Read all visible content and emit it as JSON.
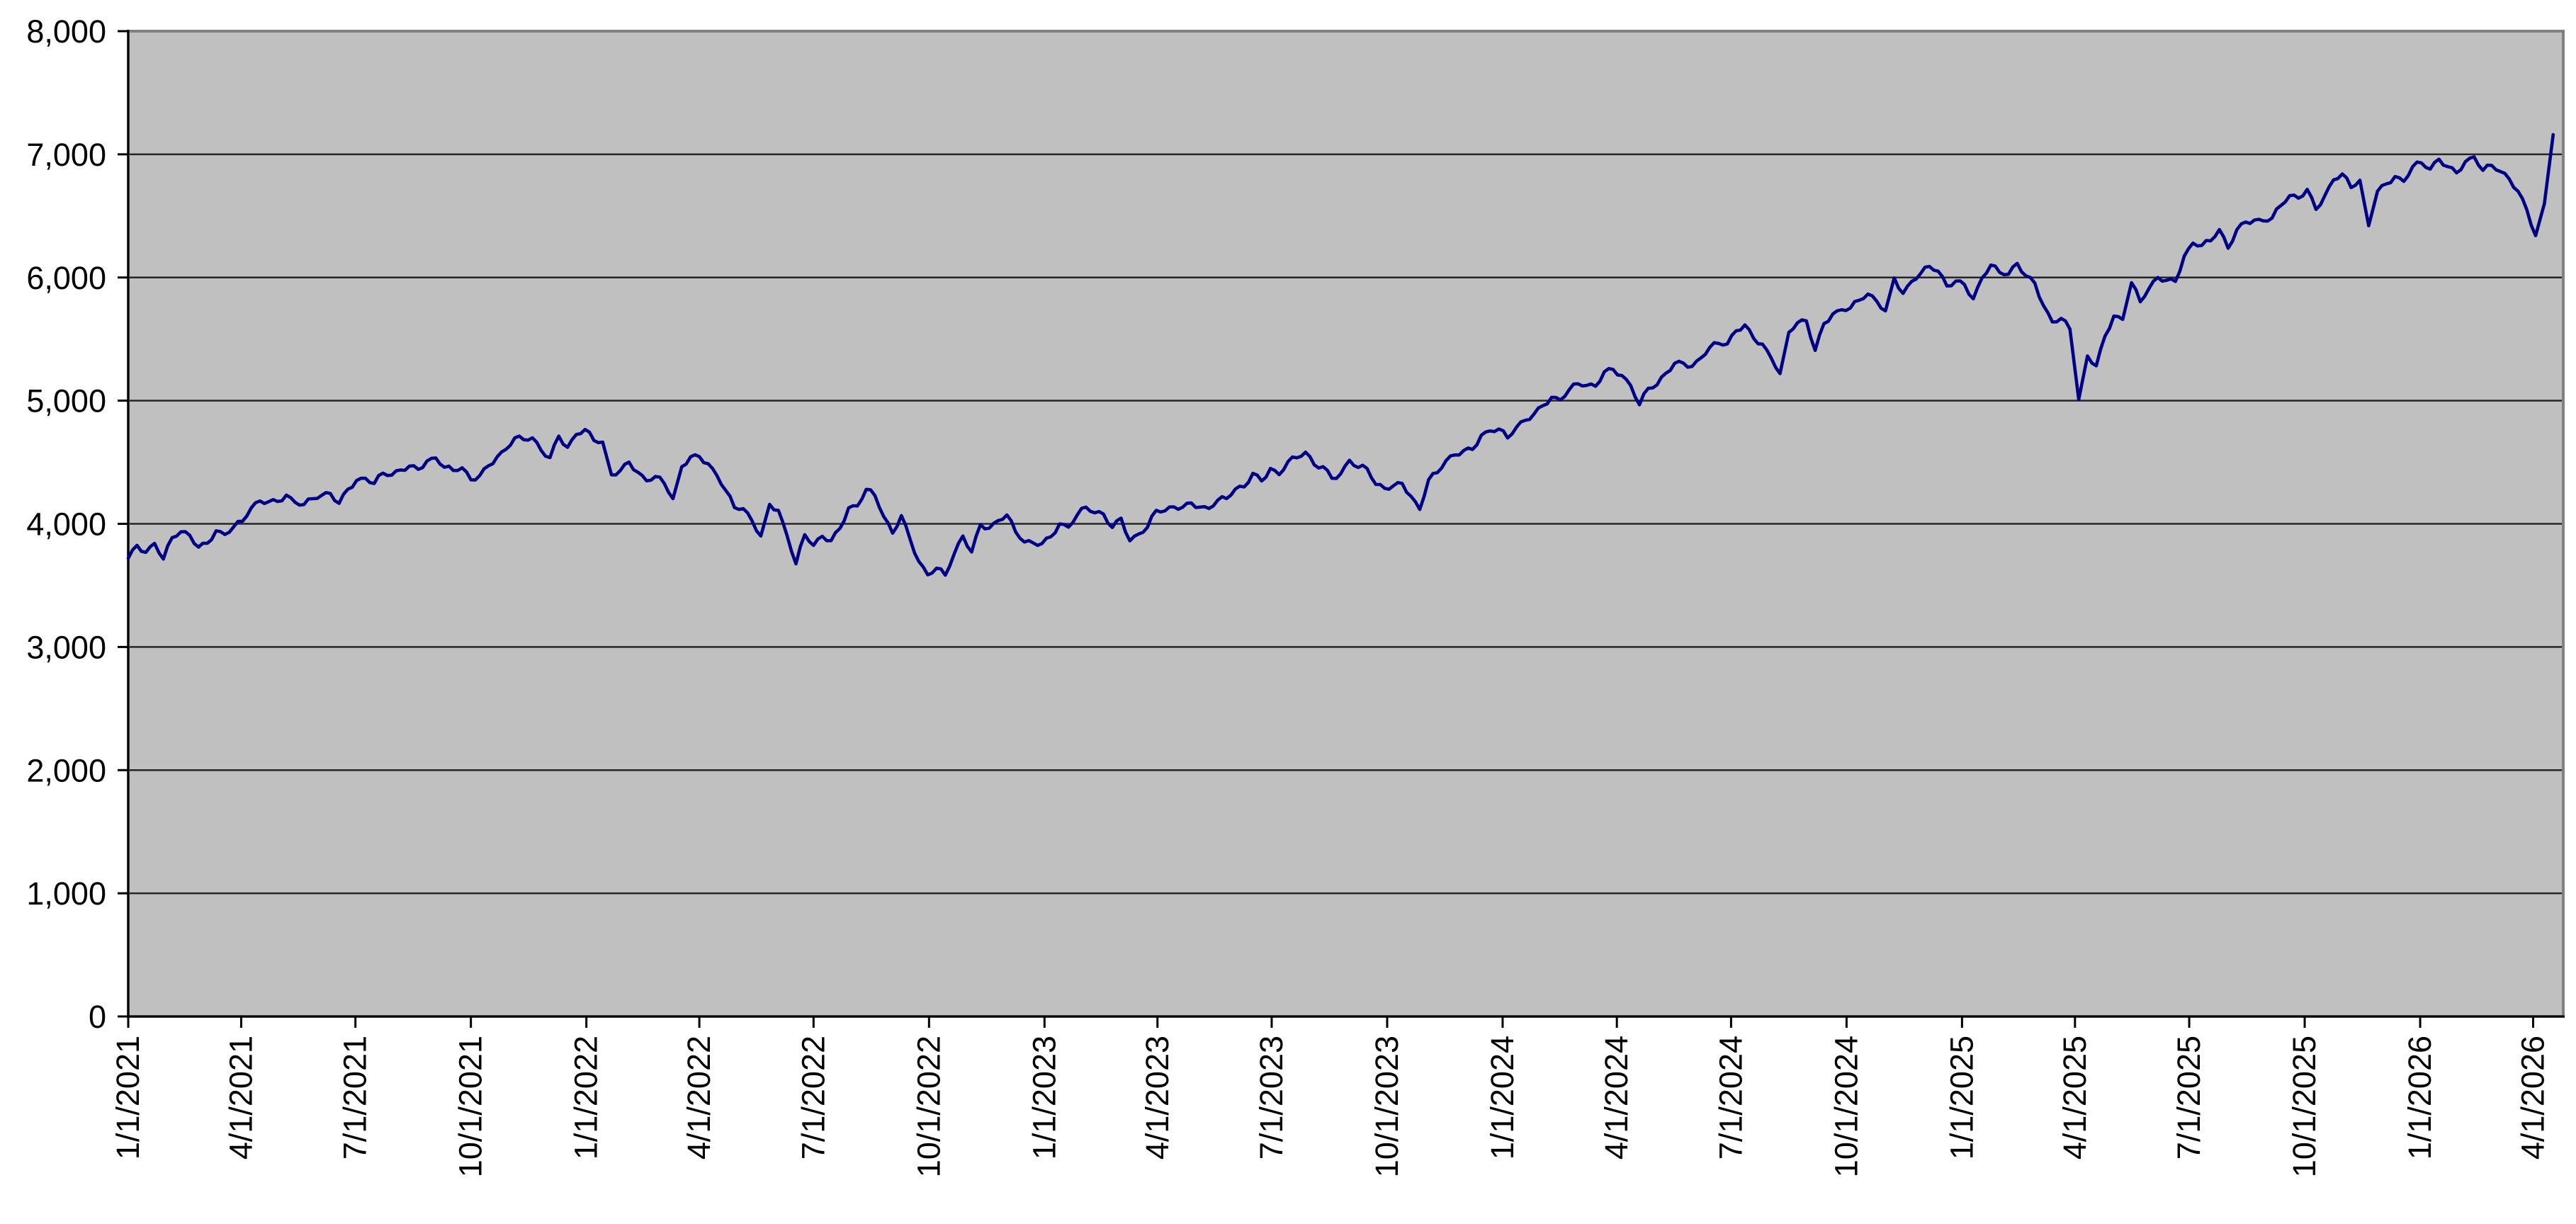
{
  "chart_data": {
    "type": "line",
    "title": "",
    "xlabel": "",
    "ylabel": "",
    "legend": "none",
    "grid": "horizontal-major",
    "ylim": [
      0,
      8000
    ],
    "y_tick_step": 1000,
    "y_tick_labels": [
      "0",
      "1,000",
      "2,000",
      "3,000",
      "4,000",
      "5,000",
      "6,000",
      "7,000",
      "8,000"
    ],
    "x_axis": {
      "domain_start": "2021-01-01",
      "domain_end": "2026-04-25",
      "ticks": [
        {
          "label": "1/1/2021",
          "date": "2021-01-01"
        },
        {
          "label": "4/1/2021",
          "date": "2021-04-01"
        },
        {
          "label": "7/1/2021",
          "date": "2021-07-01"
        },
        {
          "label": "10/1/2021",
          "date": "2021-10-01"
        },
        {
          "label": "1/1/2022",
          "date": "2022-01-01"
        },
        {
          "label": "4/1/2022",
          "date": "2022-04-01"
        },
        {
          "label": "7/1/2022",
          "date": "2022-07-01"
        },
        {
          "label": "10/1/2022",
          "date": "2022-10-01"
        },
        {
          "label": "1/1/2023",
          "date": "2023-01-01"
        },
        {
          "label": "4/1/2023",
          "date": "2023-04-01"
        },
        {
          "label": "7/1/2023",
          "date": "2023-07-01"
        },
        {
          "label": "10/1/2023",
          "date": "2023-10-01"
        },
        {
          "label": "1/1/2024",
          "date": "2024-01-01"
        },
        {
          "label": "4/1/2024",
          "date": "2024-04-01"
        },
        {
          "label": "7/1/2024",
          "date": "2024-07-01"
        },
        {
          "label": "10/1/2024",
          "date": "2024-10-01"
        },
        {
          "label": "1/1/2025",
          "date": "2025-01-01"
        },
        {
          "label": "4/1/2025",
          "date": "2025-04-01"
        },
        {
          "label": "7/1/2025",
          "date": "2025-07-01"
        },
        {
          "label": "10/1/2025",
          "date": "2025-10-01"
        },
        {
          "label": "1/1/2026",
          "date": "2026-01-01"
        },
        {
          "label": "4/1/2026",
          "date": "2026-04-01"
        }
      ]
    },
    "series": [
      {
        "name": "index-close",
        "start_date": "2021-01-01",
        "interval_days": 7,
        "values": [
          3720,
          3825,
          3768,
          3841,
          3714,
          3887,
          3935,
          3907,
          3811,
          3842,
          3943,
          3913,
          3975,
          4020,
          4129,
          4185,
          4180,
          4181,
          4233,
          4174,
          4156,
          4204,
          4230,
          4247,
          4166,
          4281,
          4352,
          4370,
          4327,
          4412,
          4395,
          4437,
          4468,
          4442,
          4510,
          4535,
          4459,
          4433,
          4455,
          4357,
          4391,
          4471,
          4545,
          4605,
          4698,
          4683,
          4698,
          4595,
          4538,
          4712,
          4621,
          4725,
          4766,
          4677,
          4663,
          4398,
          4432,
          4501,
          4419,
          4349,
          4385,
          4329,
          4204,
          4463,
          4543,
          4546,
          4488,
          4393,
          4272,
          4132,
          4123,
          4024,
          3901,
          4158,
          4109,
          3901,
          3675,
          3912,
          3825,
          3899,
          3863,
          3962,
          4130,
          4145,
          4280,
          4228,
          4058,
          3924,
          4067,
          3873,
          3693,
          3586,
          3640,
          3583,
          3753,
          3901,
          3771,
          3993,
          3965,
          4026,
          4072,
          3934,
          3852,
          3845,
          3840,
          3895,
          3999,
          3973,
          4071,
          4136,
          4090,
          4079,
          3970,
          4046,
          3862,
          3917,
          3971,
          4109,
          4105,
          4138,
          4134,
          4169,
          4136,
          4124,
          4192,
          4205,
          4282,
          4299,
          4410,
          4348,
          4450,
          4399,
          4505,
          4536,
          4582,
          4478,
          4464,
          4370,
          4406,
          4516,
          4457,
          4450,
          4320,
          4288,
          4309,
          4328,
          4224,
          4117,
          4358,
          4415,
          4514,
          4559,
          4595,
          4604,
          4719,
          4754,
          4770,
          4697,
          4784,
          4840,
          4891,
          4959,
          5027,
          5006,
          5089,
          5137,
          5124,
          5117,
          5234,
          5254,
          5204,
          5123,
          4967,
          5100,
          5128,
          5223,
          5303,
          5305,
          5278,
          5347,
          5432,
          5465,
          5460,
          5567,
          5615,
          5505,
          5459,
          5346,
          5220,
          5554,
          5634,
          5648,
          5408,
          5626,
          5703,
          5738,
          5751,
          5815,
          5865,
          5808,
          5729,
          5996,
          5871,
          5969,
          6032,
          6090,
          6051,
          5931,
          5971,
          5942,
          5827,
          5997,
          6101,
          6041,
          6026,
          6115,
          6013,
          5955,
          5770,
          5639,
          5668,
          5581,
          5010,
          5363,
          5283,
          5525,
          5687,
          5660,
          5958,
          5803,
          5912,
          6000,
          5977,
          5968,
          6173,
          6279,
          6260,
          6297,
          6389,
          6238,
          6389,
          6450,
          6467,
          6460,
          6482,
          6584,
          6664,
          6644,
          6716,
          6553,
          6664,
          6792,
          6841,
          6730,
          6790,
          6420,
          6700,
          6760,
          6820,
          6780,
          6900,
          6930,
          6880,
          6960,
          6900,
          6850,
          6940,
          6980,
          6870,
          6910,
          6860,
          6800,
          6700,
          6550,
          6340,
          6600,
          7160
        ]
      }
    ],
    "colors": {
      "line": "#000087",
      "plot_background": "#c0c0c0",
      "gridline": "#262626",
      "plot_border": "#808080",
      "axis": "#000000",
      "tick_text": "#000000",
      "page_background": "#ffffff"
    }
  }
}
